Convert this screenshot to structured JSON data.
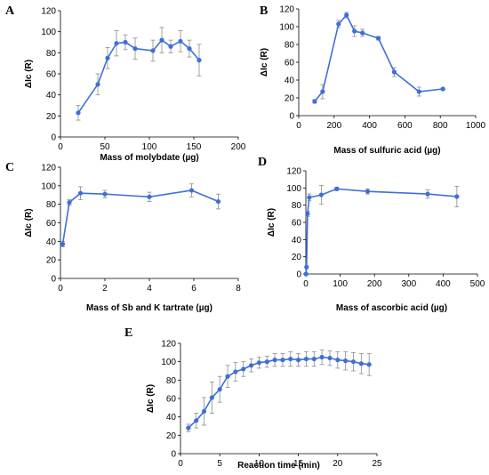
{
  "chart_data": [
    {
      "panel": "A",
      "type": "line",
      "xlabel": "Mass of molybdate (µg)",
      "ylabel": "ΔIc (R)",
      "xlim": [
        0,
        200
      ],
      "ylim": [
        0,
        120
      ],
      "xticks": [
        0,
        50,
        100,
        150,
        200
      ],
      "yticks": [
        0,
        20,
        40,
        60,
        80,
        100,
        120
      ],
      "x": [
        20,
        42,
        53,
        63,
        73,
        84,
        104,
        114,
        124,
        135,
        145,
        156
      ],
      "y": [
        23,
        50,
        75,
        89,
        90,
        84,
        82,
        92,
        86,
        91,
        84,
        73
      ],
      "err": [
        7,
        10,
        10,
        12,
        7,
        10,
        10,
        12,
        6,
        10,
        8,
        15
      ],
      "color": "#3e6fd8",
      "grid": false
    },
    {
      "panel": "B",
      "type": "line",
      "xlabel": "Mass of sulfuric acid  (µg)",
      "ylabel": "ΔIc (R)",
      "xlim": [
        0,
        1000
      ],
      "ylim": [
        0,
        120
      ],
      "xticks": [
        0,
        200,
        400,
        600,
        800,
        1000
      ],
      "yticks": [
        0,
        20,
        40,
        60,
        80,
        100,
        120
      ],
      "x": [
        90,
        135,
        225,
        270,
        315,
        360,
        450,
        540,
        680,
        815
      ],
      "y": [
        16,
        27,
        103,
        113,
        95,
        93,
        87,
        49,
        27,
        30
      ],
      "err": [
        2,
        8,
        4,
        3,
        6,
        4,
        2,
        5,
        5,
        1
      ],
      "color": "#3e6fd8",
      "grid": false
    },
    {
      "panel": "C",
      "type": "line",
      "xlabel": "Mass of Sb and K tartrate (µg)",
      "ylabel": "ΔIc (R)",
      "xlim": [
        0,
        8
      ],
      "ylim": [
        0,
        120
      ],
      "xticks": [
        0,
        2,
        4,
        6,
        8
      ],
      "yticks": [
        0,
        20,
        40,
        60,
        80,
        100,
        120
      ],
      "x": [
        0.1,
        0.4,
        0.9,
        2.0,
        4.0,
        5.9,
        7.1
      ],
      "y": [
        37,
        82,
        92,
        91,
        88,
        95,
        83
      ],
      "err": [
        3,
        3,
        7,
        4,
        5,
        7,
        8
      ],
      "color": "#3e6fd8",
      "grid": false
    },
    {
      "panel": "D",
      "type": "line",
      "xlabel": "Mass of ascorbic acid (µg)",
      "ylabel": "ΔIc (R)",
      "xlim": [
        0,
        500
      ],
      "ylim": [
        0,
        120
      ],
      "xticks": [
        0,
        100,
        200,
        300,
        400,
        500
      ],
      "yticks": [
        0,
        20,
        40,
        60,
        80,
        100,
        120
      ],
      "x": [
        0.5,
        2,
        5,
        10,
        45,
        90,
        180,
        355,
        440
      ],
      "y": [
        0,
        8,
        70,
        89,
        92,
        99,
        96,
        93,
        90
      ],
      "err": [
        0,
        0,
        3,
        4,
        11,
        2,
        3,
        5,
        12
      ],
      "color": "#3e6fd8",
      "grid": false
    },
    {
      "panel": "E",
      "type": "line",
      "xlabel": "Reaction time (min)",
      "ylabel": "ΔIc (R)",
      "xlim": [
        0,
        25
      ],
      "ylim": [
        0,
        120
      ],
      "xticks": [
        0,
        5,
        10,
        15,
        20,
        25
      ],
      "yticks": [
        0,
        20,
        40,
        60,
        80,
        100,
        120
      ],
      "x": [
        1,
        2,
        3,
        4,
        5,
        6,
        7,
        8,
        9,
        10,
        11,
        12,
        13,
        14,
        15,
        16,
        17,
        18,
        19,
        20,
        21,
        22,
        23,
        24
      ],
      "y": [
        28,
        36,
        46,
        61,
        70,
        84,
        89,
        92,
        96,
        99,
        100,
        102,
        102,
        103,
        102,
        103,
        103,
        105,
        104,
        102,
        101,
        100,
        98,
        97
      ],
      "err": [
        4,
        8,
        15,
        17,
        14,
        12,
        10,
        8,
        7,
        6,
        6,
        7,
        7,
        8,
        7,
        8,
        8,
        8,
        8,
        9,
        10,
        10,
        11,
        12
      ],
      "color": "#3e6fd8",
      "grid": false
    }
  ]
}
